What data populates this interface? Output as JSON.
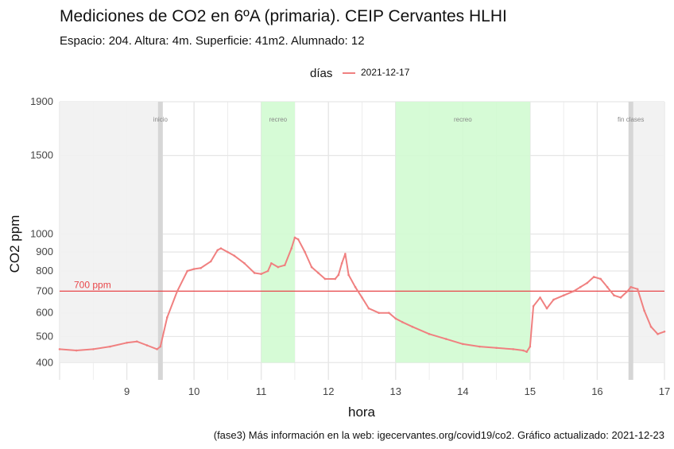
{
  "header": {
    "title": "Mediciones de CO2 en 6ºA (primaria). CEIP Cervantes HLHI",
    "subtitle": "Espacio: 204. Altura: 4m. Superficie: 41m2. Alumnado: 12"
  },
  "legend": {
    "title": "días",
    "entries": [
      "2021-12-17"
    ],
    "position": "top"
  },
  "caption": "(fase3) Más información en la web: igecervantes.org/covid19/co2. Gráfico actualizado: 2021-12-23",
  "colors": {
    "series": "#f08080",
    "reference_line": "#e8474a",
    "recess_band": "#d2fbd2",
    "out_of_class_band": "#f1f1f1",
    "marker_line": "#d6d6d6",
    "grid": "#e6e6e6"
  },
  "chart_data": {
    "type": "line",
    "title": "Mediciones de CO2 en 6ºA (primaria). CEIP Cervantes HLHI",
    "subtitle": "Espacio: 204. Altura: 4m. Superficie: 41m2. Alumnado: 12",
    "xlabel": "hora",
    "ylabel": "CO2 ppm",
    "xlim": [
      8,
      17
    ],
    "ylim": [
      340,
      1900
    ],
    "x_ticks": [
      9,
      10,
      11,
      12,
      13,
      14,
      15,
      16,
      17
    ],
    "y_ticks": [
      400,
      500,
      600,
      700,
      800,
      900,
      1000,
      1500,
      1900
    ],
    "y_scale": "sqrt",
    "grid": true,
    "legend_position": "top",
    "reference_line": {
      "y": 700,
      "label": "700 ppm"
    },
    "shaded_ranges": [
      {
        "kind": "out_of_class",
        "x0": 8,
        "x1": 9.5
      },
      {
        "kind": "recess",
        "x0": 11,
        "x1": 11.5,
        "label": "recreo"
      },
      {
        "kind": "recess",
        "x0": 13,
        "x1": 15,
        "label": "recreo"
      },
      {
        "kind": "out_of_class",
        "x0": 16.5,
        "x1": 17
      }
    ],
    "markers": [
      {
        "x": 9.5,
        "label": "inicio"
      },
      {
        "x": 16.5,
        "label": "fin clases"
      }
    ],
    "series": [
      {
        "name": "2021-12-17",
        "x": [
          8.0,
          8.25,
          8.5,
          8.75,
          9.0,
          9.15,
          9.3,
          9.45,
          9.5,
          9.6,
          9.75,
          9.9,
          10.0,
          10.1,
          10.25,
          10.35,
          10.4,
          10.5,
          10.6,
          10.75,
          10.9,
          11.0,
          11.1,
          11.15,
          11.25,
          11.35,
          11.45,
          11.5,
          11.55,
          11.65,
          11.75,
          11.85,
          11.95,
          12.1,
          12.15,
          12.2,
          12.25,
          12.3,
          12.4,
          12.5,
          12.6,
          12.75,
          12.9,
          13.0,
          13.1,
          13.25,
          13.5,
          13.75,
          14.0,
          14.25,
          14.5,
          14.75,
          14.9,
          14.95,
          15.0,
          15.05,
          15.15,
          15.25,
          15.35,
          15.5,
          15.65,
          15.75,
          15.85,
          15.95,
          16.05,
          16.15,
          16.25,
          16.35,
          16.45,
          16.5,
          16.6,
          16.7,
          16.8,
          16.9,
          17.0
        ],
        "y": [
          450,
          445,
          450,
          460,
          475,
          480,
          465,
          450,
          460,
          580,
          700,
          800,
          810,
          815,
          850,
          910,
          920,
          900,
          880,
          840,
          790,
          785,
          800,
          840,
          820,
          830,
          920,
          980,
          970,
          900,
          820,
          790,
          760,
          760,
          780,
          840,
          890,
          780,
          720,
          670,
          620,
          600,
          600,
          575,
          560,
          540,
          510,
          490,
          470,
          460,
          455,
          450,
          445,
          440,
          460,
          630,
          670,
          620,
          660,
          680,
          700,
          720,
          740,
          770,
          760,
          720,
          680,
          670,
          700,
          720,
          710,
          610,
          540,
          510,
          520
        ]
      }
    ]
  }
}
